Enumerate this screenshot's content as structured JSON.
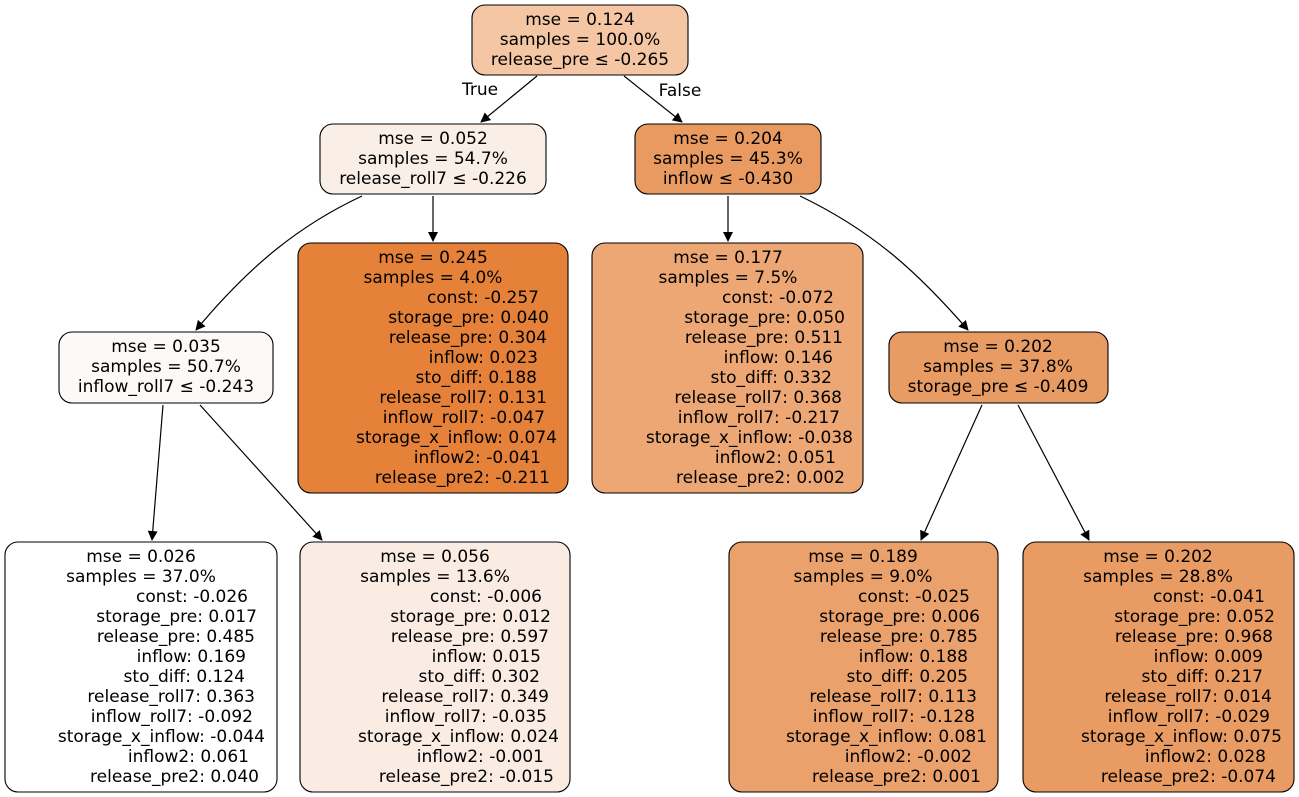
{
  "edge_labels": {
    "true": "True",
    "false": "False"
  },
  "nodes": {
    "n0": {
      "lines": [
        "mse = 0.124",
        "samples = 100.0%",
        "release_pre ≤ -0.265"
      ],
      "fill": "#f4c6a4"
    },
    "n1": {
      "lines": [
        "mse = 0.052",
        "samples = 54.7%",
        "release_roll7 ≤ -0.226"
      ],
      "fill": "#faefe6"
    },
    "n2": {
      "lines": [
        "mse = 0.204",
        "samples = 45.3%",
        "inflow ≤ -0.430"
      ],
      "fill": "#e89a60"
    },
    "n3": {
      "lines": [
        "mse = 0.035",
        "samples = 50.7%",
        "inflow_roll7 ≤ -0.243"
      ],
      "fill": "#fdf9f6"
    },
    "n4": {
      "lines": [
        "mse = 0.245",
        "samples = 4.0%",
        "const: -0.257",
        "storage_pre:  0.040",
        "release_pre:  0.304",
        "inflow:  0.023",
        "sto_diff:  0.188",
        "release_roll7:  0.131",
        "inflow_roll7: -0.047",
        "storage_x_inflow:  0.074",
        "inflow2: -0.041",
        "release_pre2: -0.211"
      ],
      "fill": "#e58139"
    },
    "n5": {
      "lines": [
        "mse = 0.177",
        "samples = 7.5%",
        "const: -0.072",
        "storage_pre:  0.050",
        "release_pre:  0.511",
        "inflow:  0.146",
        "sto_diff:  0.332",
        "release_roll7:  0.368",
        "inflow_roll7: -0.217",
        "storage_x_inflow: -0.038",
        "inflow2:  0.051",
        "release_pre2:  0.002"
      ],
      "fill": "#eca775"
    },
    "n6": {
      "lines": [
        "mse = 0.202",
        "samples = 37.8%",
        "storage_pre ≤ -0.409"
      ],
      "fill": "#e89b62"
    },
    "n7": {
      "lines": [
        "mse = 0.026",
        "samples = 37.0%",
        "const: -0.026",
        "storage_pre:  0.017",
        "release_pre:  0.485",
        "inflow:  0.169",
        "sto_diff:  0.124",
        "release_roll7:  0.363",
        "inflow_roll7: -0.092",
        "storage_x_inflow: -0.044",
        "inflow2:  0.061",
        "release_pre2:  0.040"
      ],
      "fill": "#ffffff"
    },
    "n8": {
      "lines": [
        "mse = 0.056",
        "samples = 13.6%",
        "const: -0.006",
        "storage_pre:  0.012",
        "release_pre:  0.597",
        "inflow:  0.015",
        "sto_diff:  0.302",
        "release_roll7:  0.349",
        "inflow_roll7: -0.035",
        "storage_x_inflow:  0.024",
        "inflow2: -0.001",
        "release_pre2: -0.015"
      ],
      "fill": "#faece3"
    },
    "n9": {
      "lines": [
        "mse = 0.189",
        "samples = 9.0%",
        "const: -0.025",
        "storage_pre:  0.006",
        "release_pre:  0.785",
        "inflow:  0.188",
        "sto_diff:  0.205",
        "release_roll7:  0.113",
        "inflow_roll7: -0.128",
        "storage_x_inflow:  0.081",
        "inflow2: -0.002",
        "release_pre2:  0.001"
      ],
      "fill": "#eaa16b"
    },
    "n10": {
      "lines": [
        "mse = 0.202",
        "samples = 28.8%",
        "const: -0.041",
        "storage_pre:  0.052",
        "release_pre:  0.968",
        "inflow:  0.009",
        "sto_diff:  0.217",
        "release_roll7:  0.014",
        "inflow_roll7: -0.029",
        "storage_x_inflow:  0.075",
        "inflow2:  0.028",
        "release_pre2: -0.074"
      ],
      "fill": "#e89b62"
    }
  }
}
